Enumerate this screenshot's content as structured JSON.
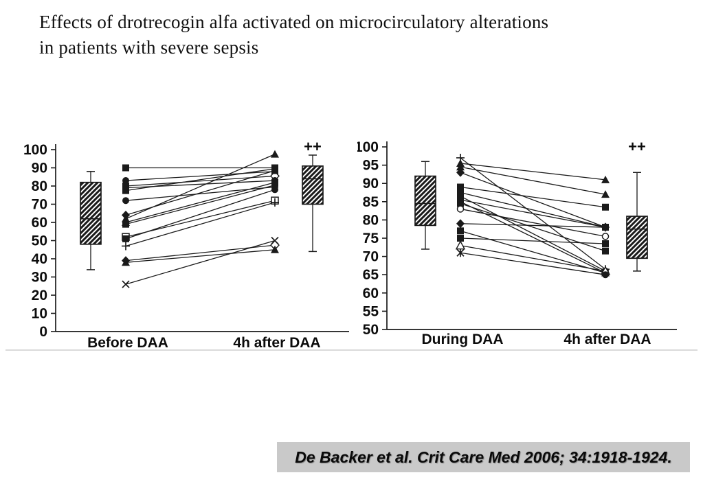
{
  "slide": {
    "title_line1": "Effects of drotrecogin alfa activated on microcirculatory alterations",
    "title_line2": "in patients with severe sepsis",
    "citation": "De Backer et al. Crit Care Med 2006; 34:1918-1924."
  },
  "colors": {
    "background": "#ffffff",
    "ink": "#1a1a1a",
    "citation_bg": "#c9c9c9",
    "divider": "#dadada"
  },
  "chart_data": [
    {
      "type": "line",
      "subtype": "paired-individual-patients-with-boxplots",
      "title": "",
      "ylabel": "",
      "ylim": [
        0,
        100
      ],
      "yticks": [
        0,
        10,
        20,
        30,
        40,
        50,
        60,
        70,
        80,
        90,
        100
      ],
      "grid": false,
      "categories": [
        "Before DAA",
        "4h after DAA"
      ],
      "boxplots": [
        {
          "at": "Before DAA",
          "whisker_low": 34,
          "q1": 48,
          "median": 62,
          "q3": 82,
          "whisker_high": 88,
          "annotation": ""
        },
        {
          "at": "4h after DAA",
          "whisker_low": 44,
          "q1": 70,
          "median": 84,
          "q3": 91,
          "whisker_high": 97,
          "annotation": "++"
        }
      ],
      "pairs": [
        {
          "before": 90,
          "after": 90,
          "marker": "filled-square"
        },
        {
          "before": 83,
          "after": 88,
          "marker": "filled-circle",
          "marker_after": "filled-square"
        },
        {
          "before": 80,
          "after": 85.5,
          "marker": "filled-square",
          "marker_after": "open-diamond"
        },
        {
          "before": 79,
          "after": 83,
          "marker": "filled-square",
          "marker_after": "filled-circle"
        },
        {
          "before": 77.5,
          "after": 89.5,
          "marker": "filled-square"
        },
        {
          "before": 72,
          "after": 79.5,
          "marker": "filled-circle"
        },
        {
          "before": 64,
          "after": 88.5,
          "marker": "filled-diamond",
          "marker_after": "filled-square"
        },
        {
          "before": 62,
          "after": 97.5,
          "marker": "filled-triangle"
        },
        {
          "before": 60,
          "after": 82,
          "marker": "filled-triangle",
          "marker_after": "filled-square"
        },
        {
          "before": 59,
          "after": 80.5,
          "marker": "filled-square",
          "marker_after": "filled-circle"
        },
        {
          "before": 52,
          "after": 72,
          "marker": "open-square"
        },
        {
          "before": 51,
          "after": 78,
          "marker": "filled-square",
          "marker_after": "filled-circle"
        },
        {
          "before": 47,
          "after": 71,
          "marker": "plus"
        },
        {
          "before": 39,
          "after": 47.5,
          "marker": "filled-diamond",
          "marker_after": "open-diamond"
        },
        {
          "before": 38,
          "after": 45,
          "marker": "filled-triangle"
        },
        {
          "before": 26,
          "after": 50,
          "marker": "x"
        }
      ]
    },
    {
      "type": "line",
      "subtype": "paired-individual-patients-with-boxplots",
      "title": "",
      "ylabel": "",
      "ylim": [
        50,
        100
      ],
      "yticks": [
        50,
        55,
        60,
        65,
        70,
        75,
        80,
        85,
        90,
        95,
        100
      ],
      "grid": false,
      "categories": [
        "During DAA",
        "4h after DAA"
      ],
      "boxplots": [
        {
          "at": "During DAA",
          "whisker_low": 72,
          "q1": 78.5,
          "median": 84.5,
          "q3": 92,
          "whisker_high": 96,
          "annotation": ""
        },
        {
          "at": "4h after DAA",
          "whisker_low": 66,
          "q1": 69.5,
          "median": 77.5,
          "q3": 81,
          "whisker_high": 93,
          "annotation": "++"
        }
      ],
      "pairs": [
        {
          "before": 97,
          "after": 66.5,
          "marker": "plus"
        },
        {
          "before": 95.5,
          "after": 91,
          "marker": "filled-triangle"
        },
        {
          "before": 94.5,
          "after": 87,
          "marker": "filled-triangle"
        },
        {
          "before": 93,
          "after": 78,
          "marker": "filled-diamond"
        },
        {
          "before": 89,
          "after": 83.5,
          "marker": "filled-square"
        },
        {
          "before": 87.5,
          "after": 78,
          "marker": "filled-square"
        },
        {
          "before": 86.5,
          "after": 66,
          "marker": "filled-square",
          "marker_after": "filled-circle"
        },
        {
          "before": 85.5,
          "after": 78,
          "marker": "filled-square"
        },
        {
          "before": 85,
          "after": 65.5,
          "marker": "filled-square",
          "marker_after": "filled-diamond"
        },
        {
          "before": 84.5,
          "after": 71.5,
          "marker": "filled-square"
        },
        {
          "before": 83,
          "after": 75.5,
          "marker": "open-circle"
        },
        {
          "before": 79,
          "after": 78,
          "marker": "filled-diamond"
        },
        {
          "before": 77,
          "after": 65.5,
          "marker": "filled-square",
          "marker_after": "filled-triangle"
        },
        {
          "before": 75,
          "after": 73.5,
          "marker": "filled-square"
        },
        {
          "before": 73,
          "after": 66,
          "marker": "open-triangle"
        },
        {
          "before": 71,
          "after": 65,
          "marker": "asterisk",
          "marker_after": "filled-circle"
        }
      ]
    }
  ]
}
